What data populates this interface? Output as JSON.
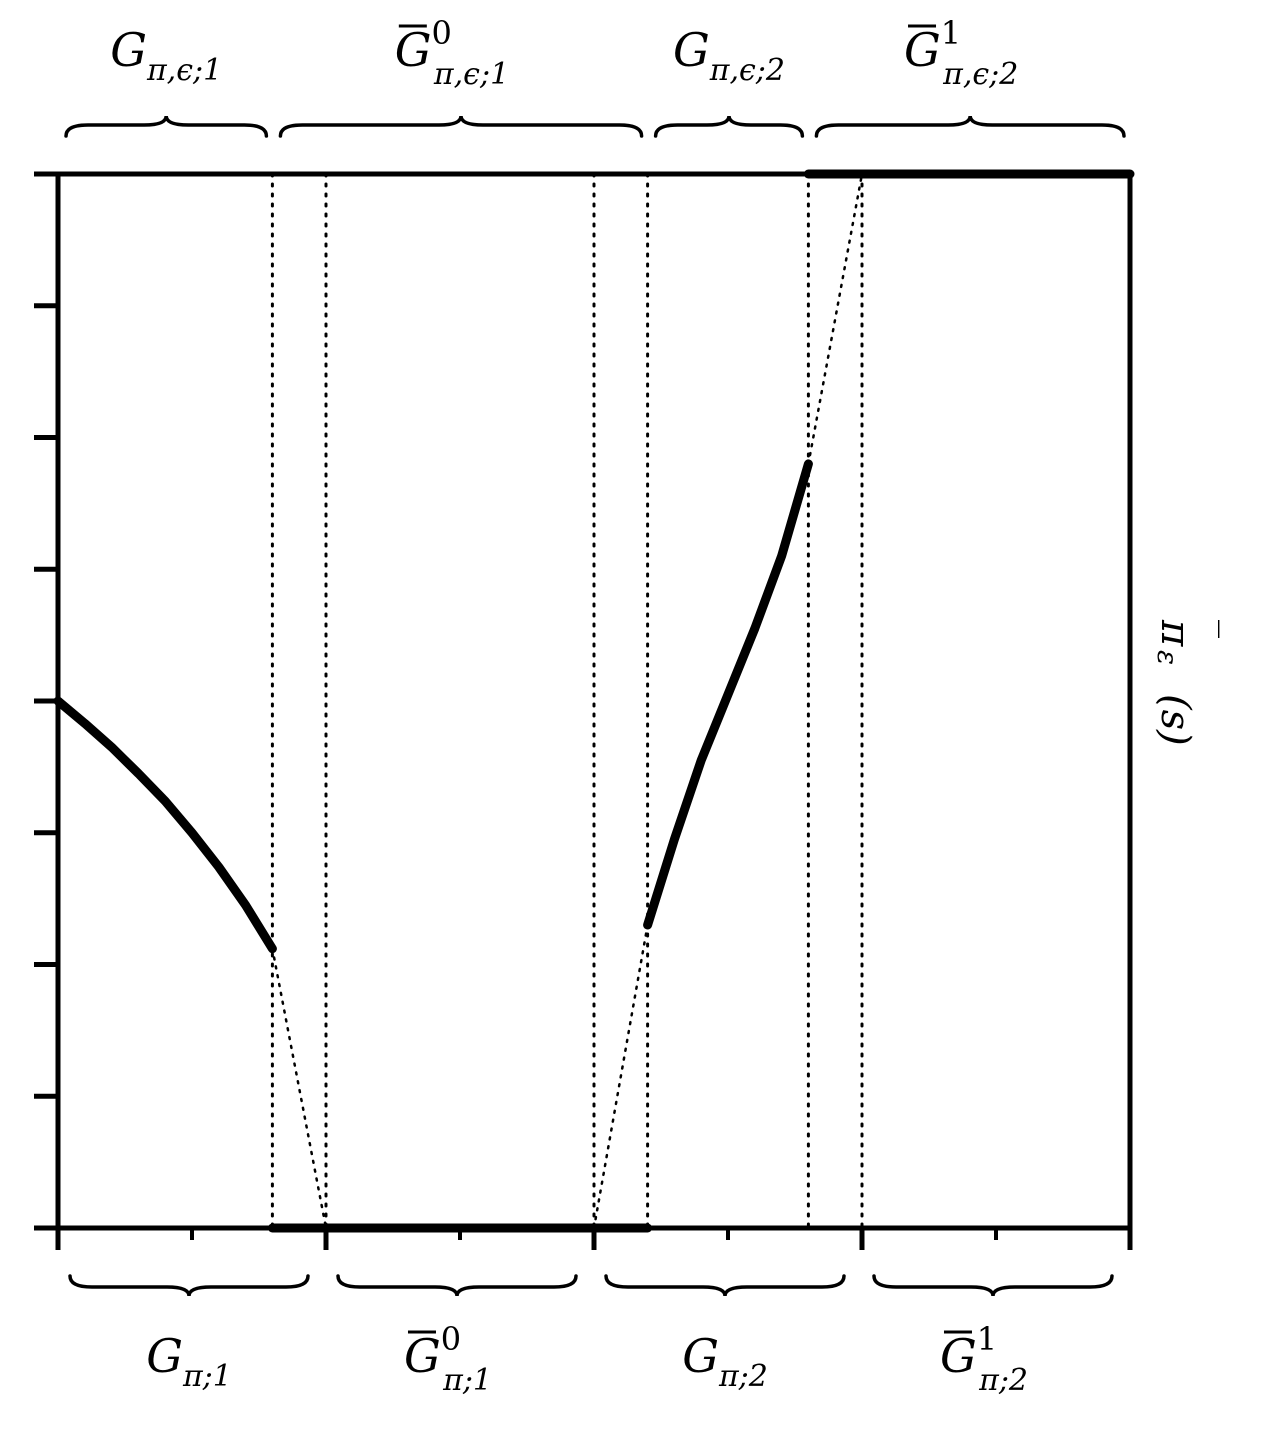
{
  "chart_data": {
    "type": "line",
    "title": "",
    "xlabel": "",
    "ylabel": "π̄_ε(s)",
    "ylabel_parts": {
      "symbol": "π",
      "bar": "‾",
      "sub": "ε",
      "arg": "(s)"
    },
    "xlim": [
      0,
      8
    ],
    "ylim": [
      0,
      8
    ],
    "x_major_ticks": [
      0,
      2,
      4,
      6,
      8
    ],
    "x_minor_ticks": [
      1,
      3,
      5,
      7
    ],
    "y_ticks": [
      0,
      1,
      2,
      3,
      4,
      5,
      6,
      7,
      8
    ],
    "grid": false,
    "legend": "none",
    "top_groups": [
      {
        "base": "G",
        "bar": false,
        "sup": "",
        "sub": "π,ϵ;1",
        "range": [
          0,
          1.6
        ]
      },
      {
        "base": "G",
        "bar": true,
        "sup": "0",
        "sub": "π,ϵ;1",
        "range": [
          1.6,
          4.4
        ]
      },
      {
        "base": "G",
        "bar": false,
        "sup": "",
        "sub": "π,ϵ;2",
        "range": [
          4.4,
          5.6
        ]
      },
      {
        "base": "G",
        "bar": true,
        "sup": "1",
        "sub": "π,ϵ;2",
        "range": [
          5.6,
          8
        ]
      }
    ],
    "bottom_groups": [
      {
        "base": "G",
        "bar": false,
        "sup": "",
        "sub": "π;1",
        "range": [
          0,
          2
        ]
      },
      {
        "base": "G",
        "bar": true,
        "sup": "0",
        "sub": "π;1",
        "range": [
          2,
          4
        ]
      },
      {
        "base": "G",
        "bar": false,
        "sup": "",
        "sub": "π;2",
        "range": [
          4,
          6
        ]
      },
      {
        "base": "G",
        "bar": true,
        "sup": "1",
        "sub": "π;2",
        "range": [
          6,
          8
        ]
      }
    ],
    "vertical_dotted_lines": [
      1.6,
      2.0,
      4.0,
      4.4,
      5.6,
      6.0
    ],
    "series": [
      {
        "style": "thick",
        "points": [
          [
            0,
            4.0
          ],
          [
            0.2,
            3.83
          ],
          [
            0.4,
            3.65
          ],
          [
            0.6,
            3.45
          ],
          [
            0.8,
            3.24
          ],
          [
            1.0,
            3.0
          ],
          [
            1.2,
            2.74
          ],
          [
            1.4,
            2.45
          ],
          [
            1.6,
            2.12
          ]
        ]
      },
      {
        "style": "thick",
        "points": [
          [
            4.4,
            2.3
          ],
          [
            4.6,
            2.95
          ],
          [
            4.8,
            3.55
          ],
          [
            5.0,
            4.05
          ],
          [
            5.2,
            4.55
          ],
          [
            5.4,
            5.1
          ],
          [
            5.6,
            5.8
          ]
        ]
      },
      {
        "style": "thick",
        "points": [
          [
            1.6,
            0
          ],
          [
            4.4,
            0
          ]
        ]
      },
      {
        "style": "thick",
        "points": [
          [
            5.6,
            8
          ],
          [
            8,
            8
          ]
        ]
      },
      {
        "style": "dotted",
        "points": [
          [
            1.6,
            2.12
          ],
          [
            2.0,
            0
          ]
        ]
      },
      {
        "style": "dotted",
        "points": [
          [
            4.0,
            0
          ],
          [
            4.4,
            2.3
          ]
        ]
      },
      {
        "style": "dotted",
        "points": [
          [
            5.6,
            5.8
          ],
          [
            6.0,
            8
          ]
        ]
      }
    ]
  }
}
